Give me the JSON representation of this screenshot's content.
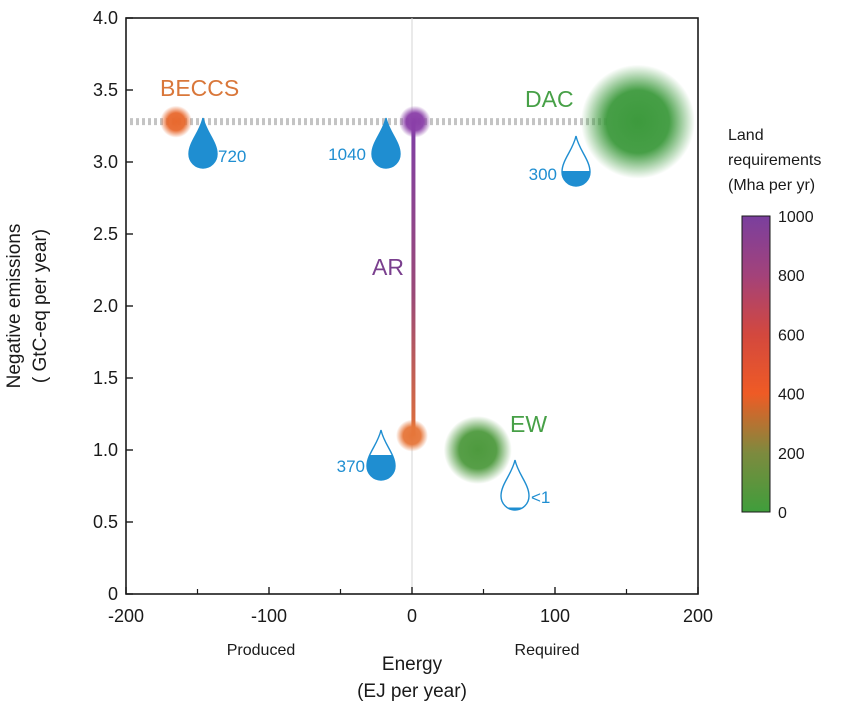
{
  "chart_data": {
    "type": "scatter",
    "xlabel": [
      "Energy",
      "(EJ per year)"
    ],
    "ylabel": [
      "Negative emissions",
      "( GtC-eq per year)"
    ],
    "x_sublabels": [
      {
        "x": -100,
        "text": "Produced"
      },
      {
        "x": 100,
        "text": "Required"
      }
    ],
    "xlim": [
      -200,
      200
    ],
    "ylim": [
      0,
      4.0
    ],
    "xticks": [
      -200,
      -100,
      0,
      100,
      200
    ],
    "xtick_labels": [
      "-200",
      "-100",
      "0",
      "100",
      "200"
    ],
    "yticks": [
      0,
      0.5,
      1.0,
      1.5,
      2.0,
      2.5,
      3.0,
      3.5,
      4.0
    ],
    "ytick_labels": [
      "0",
      "0.5",
      "1.0",
      "1.5",
      "2.0",
      "2.5",
      "3.0",
      "3.5",
      "4.0"
    ],
    "reference_line_y": 3.28,
    "colorbar": {
      "title": [
        "Land",
        "requirements",
        "(Mha per yr)"
      ],
      "min": 0,
      "max": 1000,
      "ticks": [
        0,
        200,
        400,
        600,
        800,
        1000
      ],
      "tick_labels": [
        "0",
        "200",
        "400",
        "600",
        "800",
        "1000"
      ],
      "stops": [
        {
          "value": 0,
          "color": "#3f9e3c"
        },
        {
          "value": 200,
          "color": "#7d8a3e"
        },
        {
          "value": 400,
          "color": "#ef5b25"
        },
        {
          "value": 600,
          "color": "#d3483e"
        },
        {
          "value": 800,
          "color": "#a3427a"
        },
        {
          "value": 1000,
          "color": "#7a3f9e"
        }
      ]
    },
    "points": [
      {
        "id": "beccs",
        "name": "BECCS",
        "x": -165,
        "y": 3.28,
        "land": 400,
        "color": "#e8692e",
        "bubble": "small",
        "label_color": "#d9773a"
      },
      {
        "id": "ar-top",
        "name": "AR",
        "x": 2,
        "y": 3.28,
        "land": 1000,
        "color": "#8a3fa8",
        "bubble": "small",
        "label_color": "#7a3f8e"
      },
      {
        "id": "ar-bottom",
        "name": "AR",
        "x": 0,
        "y": 1.1,
        "land": 400,
        "color": "#e6763a",
        "bubble": "small",
        "label_color": "#7a3f8e"
      },
      {
        "id": "dac",
        "name": "DAC",
        "x": 158,
        "y": 3.28,
        "land": 0,
        "color": "#3d9a3d",
        "bubble": "large",
        "label_color": "#47a047"
      },
      {
        "id": "ew",
        "name": "EW",
        "x": 46,
        "y": 1.0,
        "land": 50,
        "color": "#4e9a3e",
        "bubble": "medium",
        "label_color": "#47a047"
      }
    ],
    "water_requirements": [
      {
        "id": "beccs",
        "text": "720",
        "fill": 1.0
      },
      {
        "id": "ar",
        "text": "1040",
        "fill": 1.0
      },
      {
        "id": "ar-low",
        "text": "370",
        "fill": 0.5
      },
      {
        "id": "dac",
        "text": "300",
        "fill": 0.3
      },
      {
        "id": "ew",
        "text": "<1",
        "fill": 0.05
      }
    ],
    "water_color": "#1f8ed1"
  }
}
